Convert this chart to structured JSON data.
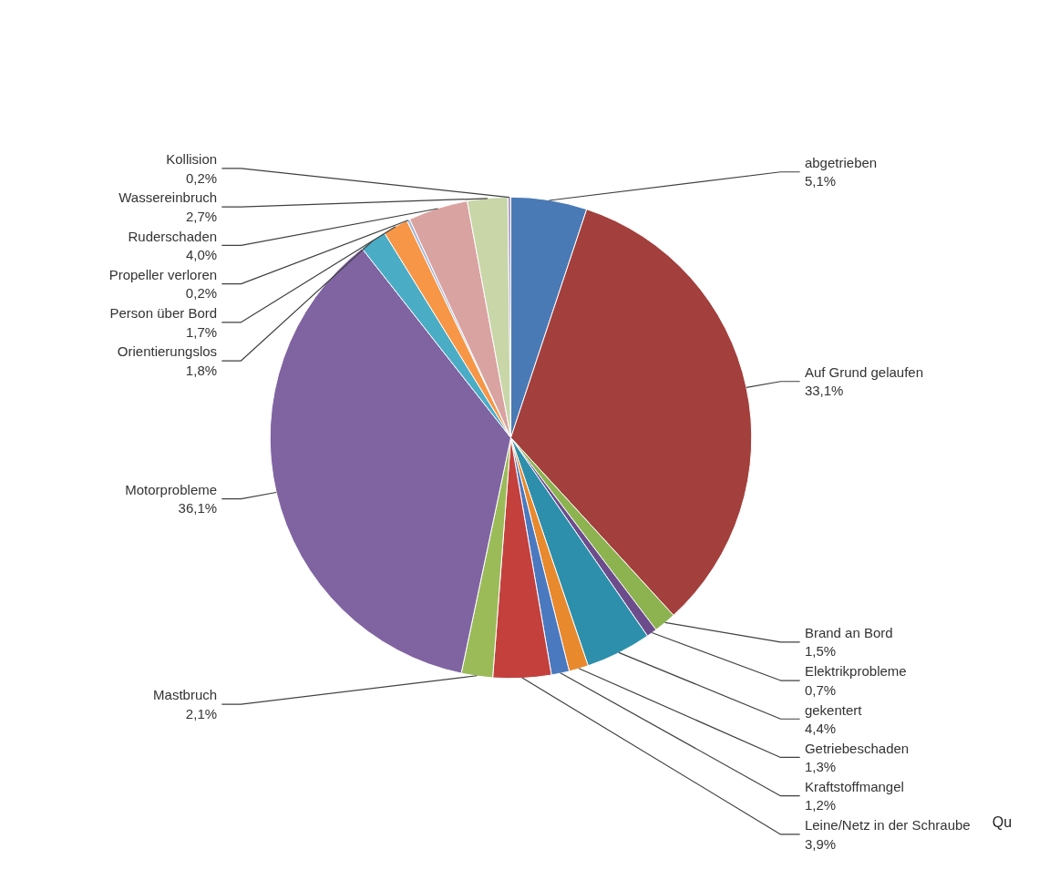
{
  "chart_data": {
    "type": "pie",
    "categories": [
      "abgetrieben",
      "Auf Grund gelaufen",
      "Brand an Bord",
      "Elektrikprobleme",
      "gekentert",
      "Getriebeschaden",
      "Kraftstoffmangel",
      "Leine/Netz  in der Schraube",
      "Mastbruch",
      "Motorprobleme",
      "Orientierungslos",
      "Person über Bord",
      "Propeller verloren",
      "Ruderschaden",
      "Wassereinbruch",
      "Kollision"
    ],
    "values": [
      5.1,
      33.1,
      1.5,
      0.7,
      4.4,
      1.3,
      1.2,
      3.9,
      2.1,
      36.1,
      1.8,
      1.7,
      0.2,
      4.0,
      2.7,
      0.2
    ],
    "value_labels": [
      "5,1%",
      "33,1%",
      "1,5%",
      "0,7%",
      "4,4%",
      "1,3%",
      "1,2%",
      "3,9%",
      "2,1%",
      "36,1%",
      "1,8%",
      "1,7%",
      "0,2%",
      "4,0%",
      "2,7%",
      "0,2%"
    ],
    "colors": [
      "#4a7ab5",
      "#a33f3c",
      "#8db350",
      "#6d4c8c",
      "#2d8fab",
      "#e8892d",
      "#4b79c0",
      "#c3403d",
      "#9bbb59",
      "#8064a2",
      "#4bacc6",
      "#f79646",
      "#a5b9db",
      "#d9a3a2",
      "#c8d6a8",
      "#b3a2c7"
    ],
    "annotations": [
      "Qu"
    ]
  }
}
